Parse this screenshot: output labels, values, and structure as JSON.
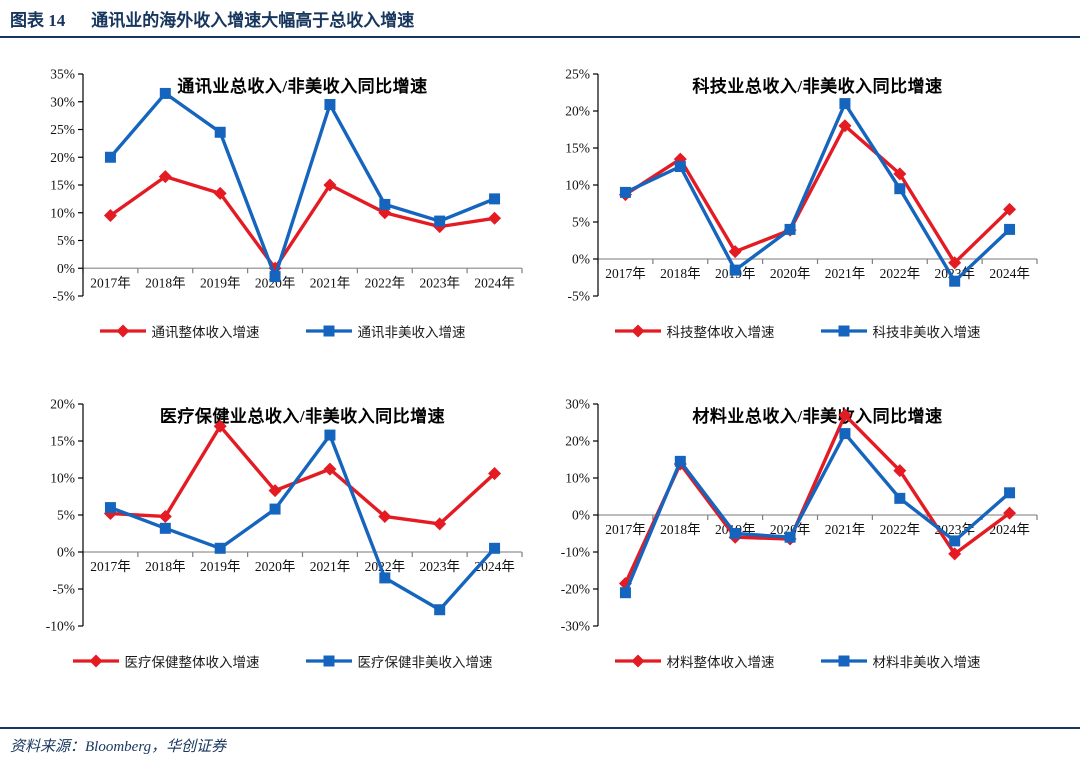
{
  "header": {
    "figure_label": "图表 14",
    "title": "通讯业的海外收入增速大幅高于总收入增速"
  },
  "footer": {
    "source": "资料来源：Bloomberg，华创证券"
  },
  "colors": {
    "red": "#E41B23",
    "blue": "#1565BE",
    "navy": "#17365D",
    "axis_line": "#A6A6A6",
    "axis_tick": "#7F7F7F",
    "axis_y": "#000000"
  },
  "chart_data": [
    {
      "type": "line",
      "title": "通讯业总收入/非美收入同比增速",
      "categories": [
        "2017年",
        "2018年",
        "2019年",
        "2020年",
        "2021年",
        "2022年",
        "2023年",
        "2024年"
      ],
      "ylim": [
        -5,
        35
      ],
      "ytick_step": 5,
      "grid": false,
      "legend_position": "bottom",
      "series": [
        {
          "name": "通讯整体收入增速",
          "color_key": "red",
          "marker": "diamond",
          "values": [
            9.5,
            16.5,
            13.5,
            0,
            15,
            10,
            7.5,
            9
          ]
        },
        {
          "name": "通讯非美收入增速",
          "color_key": "blue",
          "marker": "square",
          "values": [
            20,
            31.5,
            24.5,
            -1.5,
            29.5,
            11.5,
            8.5,
            12.5
          ]
        }
      ]
    },
    {
      "type": "line",
      "title": "科技业总收入/非美收入同比增速",
      "categories": [
        "2017年",
        "2018年",
        "2019年",
        "2020年",
        "2021年",
        "2022年",
        "2023年",
        "2024年"
      ],
      "ylim": [
        -5,
        25
      ],
      "ytick_step": 5,
      "grid": false,
      "legend_position": "bottom",
      "series": [
        {
          "name": "科技整体收入增速",
          "color_key": "red",
          "marker": "diamond",
          "values": [
            8.7,
            13.5,
            1,
            3.9,
            18,
            11.5,
            -0.5,
            6.7
          ]
        },
        {
          "name": "科技非美收入增速",
          "color_key": "blue",
          "marker": "square",
          "values": [
            9,
            12.5,
            -1.5,
            4,
            21,
            9.5,
            -3,
            4
          ]
        }
      ]
    },
    {
      "type": "line",
      "title": "医疗保健业总收入/非美收入同比增速",
      "categories": [
        "2017年",
        "2018年",
        "2019年",
        "2020年",
        "2021年",
        "2022年",
        "2023年",
        "2024年"
      ],
      "ylim": [
        -10,
        20
      ],
      "ytick_step": 5,
      "grid": false,
      "legend_position": "bottom",
      "series": [
        {
          "name": "医疗保健整体收入增速",
          "color_key": "red",
          "marker": "diamond",
          "values": [
            5.2,
            4.8,
            17,
            8.3,
            11.2,
            4.8,
            3.8,
            10.6
          ]
        },
        {
          "name": "医疗保健非美收入增速",
          "color_key": "blue",
          "marker": "square",
          "values": [
            6,
            3.2,
            0.5,
            5.8,
            15.8,
            -3.5,
            -7.8,
            0.5
          ]
        }
      ]
    },
    {
      "type": "line",
      "title": "材料业总收入/非美收入同比增速",
      "categories": [
        "2017年",
        "2018年",
        "2019年",
        "2020年",
        "2021年",
        "2022年",
        "2023年",
        "2024年"
      ],
      "ylim": [
        -30,
        30
      ],
      "ytick_step": 10,
      "grid": false,
      "legend_position": "bottom",
      "series": [
        {
          "name": "材料整体收入增速",
          "color_key": "red",
          "marker": "diamond",
          "values": [
            -18.5,
            13.8,
            -6,
            -6.5,
            27,
            12,
            -10.5,
            0.5
          ]
        },
        {
          "name": "材料非美收入增速",
          "color_key": "blue",
          "marker": "square",
          "values": [
            -21,
            14.5,
            -5,
            -6,
            22,
            4.5,
            -7,
            6
          ]
        }
      ]
    }
  ]
}
